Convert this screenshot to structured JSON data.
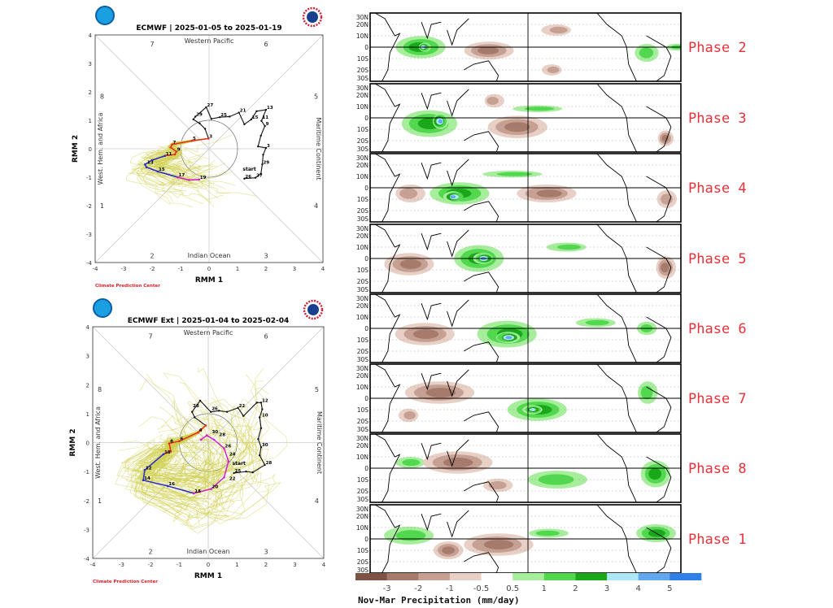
{
  "chart_data": [
    {
      "type": "line",
      "title": "ECMWF | 2025-01-05 to 2025-01-19",
      "xlabel": "RMM 1",
      "ylabel": "RMM 2",
      "xlim": [
        -4,
        4
      ],
      "ylim": [
        -4,
        4
      ],
      "ticks": [
        "-4",
        "-3",
        "-2",
        "-1",
        "0",
        "1",
        "2",
        "3",
        "4"
      ],
      "phase_numbers": [
        "1",
        "2",
        "3",
        "4",
        "5",
        "6",
        "7",
        "8"
      ],
      "region_labels": {
        "top": "Western Pacific",
        "bottom": "Indian Ocean",
        "left": "West. Hem. and Africa",
        "right": "Maritime Continent"
      },
      "credit": "Climate Prediction Center",
      "start_label": "start",
      "observed": [
        [
          1.24,
          -1.05
        ],
        [
          1.63,
          -1.02
        ],
        [
          1.82,
          -0.88
        ],
        [
          1.87,
          -0.55
        ],
        [
          1.9,
          -0.21
        ],
        [
          2.0,
          0.03
        ],
        [
          1.72,
          0.08
        ],
        [
          1.82,
          0.46
        ],
        [
          1.96,
          0.8
        ],
        [
          1.84,
          0.98
        ],
        [
          2.0,
          1.37
        ],
        [
          1.67,
          1.32
        ],
        [
          1.48,
          1.03
        ],
        [
          1.24,
          0.86
        ],
        [
          1.05,
          1.27
        ],
        [
          0.72,
          1.13
        ],
        [
          0.38,
          1.11
        ],
        [
          0.08,
          1.05
        ],
        [
          -0.1,
          1.46
        ],
        [
          -0.48,
          1.13
        ],
        [
          -0.55,
          1.03
        ],
        [
          -0.33,
          0.89
        ],
        [
          -0.14,
          0.7
        ],
        [
          -0.02,
          0.36
        ]
      ],
      "forecast": [
        {
          "color": "#e8291c",
          "points": [
            [
              -0.02,
              0.36
            ],
            [
              -0.6,
              0.28
            ],
            [
              -1.3,
              0.15
            ],
            [
              -1.35,
              0.05
            ],
            [
              -1.15,
              -0.1
            ],
            [
              -1.2,
              -0.2
            ],
            [
              -1.55,
              -0.25
            ]
          ]
        },
        {
          "color": "#2a2ad0",
          "points": [
            [
              -1.55,
              -0.25
            ],
            [
              -2.0,
              -0.4
            ],
            [
              -2.25,
              -0.55
            ],
            [
              -2.2,
              -0.65
            ],
            [
              -1.8,
              -0.8
            ],
            [
              -1.1,
              -1.0
            ]
          ]
        },
        {
          "color": "#d020c8",
          "points": [
            [
              -1.1,
              -1.0
            ],
            [
              -0.7,
              -1.1
            ],
            [
              -0.35,
              -1.08
            ]
          ]
        }
      ],
      "point_labels": [
        {
          "text": "26",
          "x": 1.24,
          "y": -1.05
        },
        {
          "text": "27",
          "x": 1.63,
          "y": -1.02
        },
        {
          "text": "29",
          "x": 1.87,
          "y": -0.55
        },
        {
          "text": "3",
          "x": 2.0,
          "y": 0.03
        },
        {
          "text": "9",
          "x": 1.96,
          "y": 0.8
        },
        {
          "text": "13",
          "x": 2.0,
          "y": 1.37
        },
        {
          "text": "11",
          "x": 1.84,
          "y": 1.2
        },
        {
          "text": "15",
          "x": 1.48,
          "y": 1.03
        },
        {
          "text": "21",
          "x": 1.05,
          "y": 1.27
        },
        {
          "text": "25",
          "x": 0.38,
          "y": 1.11
        },
        {
          "text": "27",
          "x": -0.1,
          "y": 1.46
        },
        {
          "text": "29",
          "x": -0.48,
          "y": 1.13
        },
        {
          "text": "3",
          "x": -0.02,
          "y": 0.36
        },
        {
          "text": "5",
          "x": -0.6,
          "y": 0.28
        },
        {
          "text": "7",
          "x": -1.3,
          "y": 0.15
        },
        {
          "text": "9",
          "x": -1.15,
          "y": -0.1
        },
        {
          "text": "11",
          "x": -1.55,
          "y": -0.25
        },
        {
          "text": "13",
          "x": -2.2,
          "y": -0.55
        },
        {
          "text": "15",
          "x": -1.8,
          "y": -0.8
        },
        {
          "text": "17",
          "x": -1.1,
          "y": -1.0
        },
        {
          "text": "19",
          "x": -0.35,
          "y": -1.08
        }
      ]
    },
    {
      "type": "line",
      "title": "ECMWF Ext | 2025-01-04 to 2025-02-04",
      "xlabel": "RMM 1",
      "ylabel": "RMM 2",
      "xlim": [
        -4,
        4
      ],
      "ylim": [
        -4,
        4
      ],
      "ticks": [
        "-4",
        "-3",
        "-2",
        "-1",
        "0",
        "1",
        "2",
        "3",
        "4"
      ],
      "phase_numbers": [
        "1",
        "2",
        "3",
        "4",
        "5",
        "6",
        "7",
        "8"
      ],
      "region_labels": {
        "top": "Western Pacific",
        "bottom": "Indian Ocean",
        "left": "West. Hem. and Africa",
        "right": "Maritime Continent"
      },
      "credit": "Climate Prediction Center",
      "start_label": "start",
      "observed": [
        [
          0.89,
          -1.05
        ],
        [
          1.31,
          -1.0
        ],
        [
          1.54,
          -1.03
        ],
        [
          1.96,
          -0.77
        ],
        [
          1.78,
          -0.44
        ],
        [
          1.83,
          -0.16
        ],
        [
          1.73,
          0.12
        ],
        [
          1.83,
          0.5
        ],
        [
          1.78,
          0.87
        ],
        [
          1.87,
          1.15
        ],
        [
          1.83,
          1.38
        ],
        [
          1.68,
          1.38
        ],
        [
          1.22,
          0.92
        ],
        [
          1.03,
          1.2
        ],
        [
          0.65,
          1.06
        ],
        [
          0.37,
          1.1
        ],
        [
          0.09,
          1.06
        ],
        [
          -0.28,
          1.45
        ],
        [
          -0.56,
          1.06
        ],
        [
          -0.47,
          0.87
        ],
        [
          -0.09,
          0.59
        ]
      ],
      "forecast": [
        {
          "color": "#e8291c",
          "points": [
            [
              -0.09,
              0.59
            ],
            [
              -0.35,
              0.35
            ],
            [
              -1.0,
              0.05
            ],
            [
              -1.35,
              -0.03
            ],
            [
              -1.3,
              -0.3
            ],
            [
              -1.55,
              -0.4
            ]
          ]
        },
        {
          "color": "#2a2ad0",
          "points": [
            [
              -1.55,
              -0.4
            ],
            [
              -2.2,
              -0.95
            ],
            [
              -2.25,
              -1.3
            ],
            [
              -1.4,
              -1.5
            ],
            [
              -0.5,
              -1.75
            ]
          ]
        },
        {
          "color": "#d020c8",
          "points": [
            [
              -0.5,
              -1.75
            ],
            [
              0.1,
              -1.6
            ],
            [
              0.55,
              -1.2
            ],
            [
              0.7,
              -0.65
            ],
            [
              0.55,
              -0.2
            ],
            [
              0.2,
              0.1
            ],
            [
              -0.05,
              0.25
            ],
            [
              -0.25,
              0.1
            ]
          ]
        }
      ],
      "point_labels": [
        {
          "text": "25",
          "x": 0.89,
          "y": -1.05
        },
        {
          "text": "28",
          "x": 1.96,
          "y": -0.77
        },
        {
          "text": "30",
          "x": 1.83,
          "y": -0.16
        },
        {
          "text": "10",
          "x": 1.83,
          "y": 0.87
        },
        {
          "text": "12",
          "x": 1.83,
          "y": 1.38
        },
        {
          "text": "22",
          "x": 1.03,
          "y": 1.2
        },
        {
          "text": "26",
          "x": 0.09,
          "y": 1.1
        },
        {
          "text": "28",
          "x": -0.56,
          "y": 1.2
        },
        {
          "text": "4",
          "x": -0.35,
          "y": 0.35
        },
        {
          "text": "6",
          "x": -1.0,
          "y": 0.05
        },
        {
          "text": "8",
          "x": -1.35,
          "y": -0.03
        },
        {
          "text": "10",
          "x": -1.55,
          "y": -0.4
        },
        {
          "text": "12",
          "x": -2.2,
          "y": -0.95
        },
        {
          "text": "14",
          "x": -2.25,
          "y": -1.3
        },
        {
          "text": "16",
          "x": -1.4,
          "y": -1.5
        },
        {
          "text": "18",
          "x": -0.5,
          "y": -1.75
        },
        {
          "text": "20",
          "x": 0.1,
          "y": -1.6
        },
        {
          "text": "22",
          "x": 0.7,
          "y": -1.15
        },
        {
          "text": "24",
          "x": 0.7,
          "y": -0.65
        },
        {
          "text": "26",
          "x": 0.55,
          "y": -0.2
        },
        {
          "text": "28",
          "x": 0.35,
          "y": 0.2
        },
        {
          "text": "30",
          "x": 0.1,
          "y": 0.3
        }
      ]
    },
    {
      "type": "heatmap",
      "colorbar_label": "Nov-Mar Precipitation (mm/day)",
      "colorbar_ticks": [
        "-3",
        "-2",
        "-1",
        "-0.5",
        "0.5",
        "1",
        "2",
        "3",
        "4",
        "5"
      ],
      "colorbar_colors": [
        "#7d5244",
        "#a67b6c",
        "#c6a093",
        "#e8d0c6",
        "#ffffff",
        "#a6ee9c",
        "#52d84e",
        "#1aa81a",
        "#aee8f6",
        "#62a8ee",
        "#2e7fe6"
      ],
      "lat_labels": [
        "30N",
        "20N",
        "10N",
        "0",
        "10S",
        "20S",
        "30S"
      ],
      "lon_range": [
        20,
        335
      ],
      "panels": [
        {
          "label": "Phase 2",
          "anomalies": [
            [
              70,
              0,
              25,
              10,
              1.5
            ],
            [
              75,
              0,
              6,
              4,
              4
            ],
            [
              140,
              -3,
              25,
              8,
              -2
            ],
            [
              210,
              15,
              15,
              5,
              -1
            ],
            [
              300,
              -5,
              12,
              8,
              1
            ],
            [
              330,
              0,
              10,
              3,
              1
            ],
            [
              205,
              -20,
              10,
              5,
              -1
            ]
          ]
        },
        {
          "label": "Phase 3",
          "anomalies": [
            [
              80,
              -5,
              28,
              12,
              1.5
            ],
            [
              90,
              -3,
              8,
              7,
              4
            ],
            [
              190,
              8,
              25,
              3,
              1
            ],
            [
              170,
              -8,
              30,
              10,
              -1.5
            ],
            [
              145,
              15,
              10,
              6,
              -1
            ],
            [
              320,
              -18,
              8,
              7,
              -1.5
            ]
          ]
        },
        {
          "label": "Phase 4",
          "anomalies": [
            [
              110,
              -5,
              30,
              10,
              1.5
            ],
            [
              105,
              -8,
              10,
              5,
              4
            ],
            [
              165,
              12,
              30,
              3,
              1
            ],
            [
              60,
              -5,
              15,
              8,
              -1
            ],
            [
              200,
              -5,
              30,
              8,
              -1.5
            ],
            [
              320,
              -10,
              10,
              8,
              -1
            ]
          ]
        },
        {
          "label": "Phase 5",
          "anomalies": [
            [
              130,
              0,
              25,
              12,
              1.5
            ],
            [
              135,
              0,
              10,
              5,
              4
            ],
            [
              60,
              -5,
              25,
              10,
              -1.5
            ],
            [
              320,
              -8,
              10,
              10,
              -1.5
            ],
            [
              220,
              10,
              20,
              4,
              1
            ]
          ]
        },
        {
          "label": "Phase 6",
          "anomalies": [
            [
              160,
              -5,
              30,
              12,
              1.5
            ],
            [
              160,
              -8,
              12,
              5,
              4
            ],
            [
              75,
              -5,
              30,
              10,
              -1.5
            ],
            [
              250,
              5,
              20,
              4,
              1
            ],
            [
              300,
              0,
              10,
              6,
              1
            ]
          ]
        },
        {
          "label": "Phase 7",
          "anomalies": [
            [
              190,
              -10,
              30,
              10,
              1.5
            ],
            [
              185,
              -10,
              10,
              4,
              3.5
            ],
            [
              300,
              5,
              10,
              10,
              1
            ],
            [
              90,
              5,
              35,
              10,
              -1.5
            ],
            [
              60,
              -15,
              10,
              6,
              -1
            ]
          ]
        },
        {
          "label": "Phase 8",
          "anomalies": [
            [
              210,
              -10,
              30,
              8,
              1
            ],
            [
              310,
              -5,
              15,
              12,
              1.5
            ],
            [
              60,
              5,
              15,
              5,
              1
            ],
            [
              110,
              5,
              35,
              10,
              -2
            ],
            [
              150,
              -15,
              15,
              6,
              -1
            ]
          ]
        },
        {
          "label": "Phase 1",
          "anomalies": [
            [
              60,
              3,
              25,
              8,
              1
            ],
            [
              310,
              5,
              20,
              8,
              1.5
            ],
            [
              150,
              -5,
              35,
              10,
              -2
            ],
            [
              100,
              -10,
              15,
              8,
              -1.5
            ],
            [
              200,
              5,
              20,
              4,
              1
            ]
          ]
        }
      ]
    }
  ]
}
